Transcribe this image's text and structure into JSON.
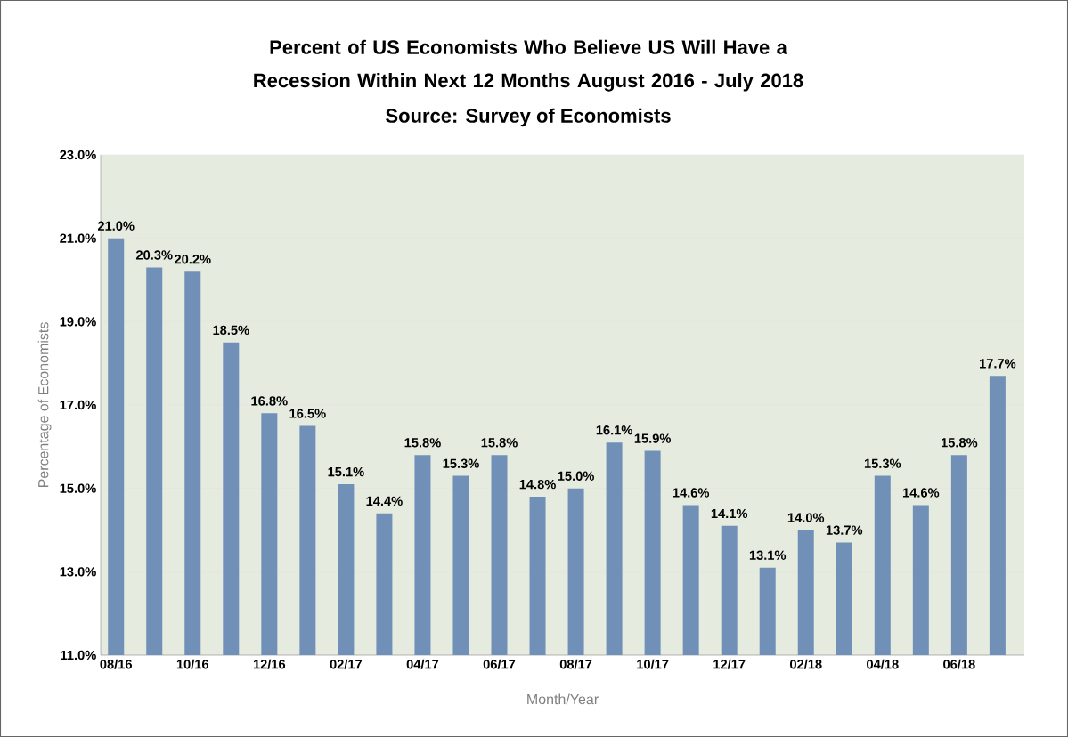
{
  "chart_data": {
    "type": "bar",
    "title": "Percent of US Economists Who Believe US Will Have a Recession Within Next 12 Months August 2016 - July 2018",
    "annotations": [
      "Source: Survey of Economists"
    ],
    "xlabel": "Month/Year",
    "ylabel": "Percentage of Economists",
    "categories": [
      "08/16",
      null,
      "10/16",
      null,
      "12/16",
      null,
      "02/17",
      null,
      "04/17",
      null,
      "06/17",
      null,
      "08/17",
      null,
      "10/17",
      null,
      "12/17",
      null,
      "02/18",
      null,
      "04/18",
      null,
      "06/18",
      null
    ],
    "values": [
      21.0,
      20.3,
      20.2,
      18.5,
      16.8,
      16.5,
      15.1,
      14.4,
      15.8,
      15.3,
      15.8,
      14.8,
      15.0,
      16.1,
      15.9,
      14.6,
      14.1,
      13.1,
      14.0,
      13.7,
      15.3,
      14.6,
      15.8,
      17.7
    ],
    "value_labels": [
      "21.0%",
      "20.3%",
      "20.2%",
      "18.5%",
      "16.8%",
      "16.5%",
      "15.1%",
      "14.4%",
      "15.8%",
      "15.3%",
      "15.8%",
      "14.8%",
      "15.0%",
      "16.1%",
      "15.9%",
      "14.6%",
      "14.1%",
      "13.1%",
      "14.0%",
      "13.7%",
      "15.3%",
      "14.6%",
      "15.8%",
      "17.7%"
    ],
    "color": "#7190b7",
    "ylim": [
      11,
      23
    ],
    "yticks": [
      {
        "value": 11,
        "label": "11.0%"
      },
      {
        "value": 13,
        "label": "13.0%"
      },
      {
        "value": 15,
        "label": "15.0%"
      },
      {
        "value": 17,
        "label": "17.0%"
      },
      {
        "value": 19,
        "label": "19.0%"
      },
      {
        "value": 21,
        "label": "21.0%"
      },
      {
        "value": 23,
        "label": "23.0%"
      }
    ],
    "grid": "y"
  }
}
